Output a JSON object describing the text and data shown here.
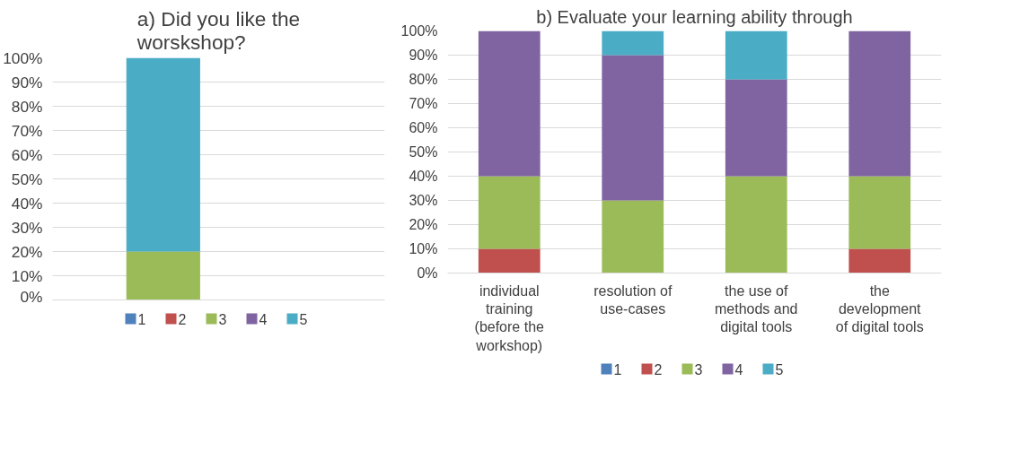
{
  "chart_data": [
    {
      "type": "bar",
      "stacked": true,
      "title": "a) Did you like the\nworskshop?",
      "categories": [
        null
      ],
      "ylim": [
        0,
        100
      ],
      "yticks": [
        {
          "value": 0,
          "label": "0%"
        },
        {
          "value": 10,
          "label": "10%"
        },
        {
          "value": 20,
          "label": "20%"
        },
        {
          "value": 30,
          "label": "30%"
        },
        {
          "value": 40,
          "label": "40%"
        },
        {
          "value": 50,
          "label": "50%"
        },
        {
          "value": 60,
          "label": "60%"
        },
        {
          "value": 70,
          "label": "70%"
        },
        {
          "value": 80,
          "label": "80%"
        },
        {
          "value": 90,
          "label": "90%"
        },
        {
          "value": 100,
          "label": "100%"
        }
      ],
      "grid": "y",
      "legend": "bottom",
      "series": [
        {
          "name": "1",
          "color": "#4f81bd",
          "values": [
            0
          ]
        },
        {
          "name": "2",
          "color": "#c0504d",
          "values": [
            0
          ]
        },
        {
          "name": "3",
          "color": "#9bbb59",
          "values": [
            20
          ]
        },
        {
          "name": "4",
          "color": "#8064a2",
          "values": [
            0
          ]
        },
        {
          "name": "5",
          "color": "#4bacc6",
          "values": [
            80
          ]
        }
      ]
    },
    {
      "type": "bar",
      "stacked": true,
      "title": "b) Evaluate your learning ability through",
      "categories": [
        "individual\ntraining\n(before the\nworkshop)",
        "resolution of\nuse-cases",
        "the use of\nmethods and\ndigital tools",
        "the\ndevelopment\nof digital tools"
      ],
      "ylim": [
        0,
        100
      ],
      "yticks": [
        {
          "value": 0,
          "label": "0%"
        },
        {
          "value": 10,
          "label": "10%"
        },
        {
          "value": 20,
          "label": "20%"
        },
        {
          "value": 30,
          "label": "30%"
        },
        {
          "value": 40,
          "label": "40%"
        },
        {
          "value": 50,
          "label": "50%"
        },
        {
          "value": 60,
          "label": "60%"
        },
        {
          "value": 70,
          "label": "70%"
        },
        {
          "value": 80,
          "label": "80%"
        },
        {
          "value": 90,
          "label": "90%"
        },
        {
          "value": 100,
          "label": "100%"
        }
      ],
      "grid": "y",
      "legend": "bottom",
      "series": [
        {
          "name": "1",
          "color": "#4f81bd",
          "values": [
            0,
            0,
            0,
            0
          ]
        },
        {
          "name": "2",
          "color": "#c0504d",
          "values": [
            10,
            0,
            0,
            10
          ]
        },
        {
          "name": "3",
          "color": "#9bbb59",
          "values": [
            30,
            30,
            40,
            30
          ]
        },
        {
          "name": "4",
          "color": "#8064a2",
          "values": [
            60,
            60,
            40,
            60
          ]
        },
        {
          "name": "5",
          "color": "#4bacc6",
          "values": [
            0,
            10,
            20,
            0
          ]
        }
      ]
    }
  ]
}
